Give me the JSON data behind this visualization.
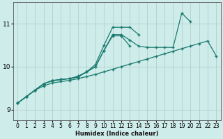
{
  "xlabel": "Humidex (Indice chaleur)",
  "ylabel": "",
  "bg_color": "#ceecea",
  "grid_color": "#b0c8c6",
  "line_color": "#1a7a6e",
  "xlim": [
    -0.5,
    23.5
  ],
  "ylim": [
    8.75,
    11.5
  ],
  "yticks": [
    9,
    10,
    11
  ],
  "xticks": [
    0,
    1,
    2,
    3,
    4,
    5,
    6,
    7,
    8,
    9,
    10,
    11,
    12,
    13,
    14,
    15,
    16,
    17,
    18,
    19,
    20,
    21,
    22,
    23
  ],
  "series": [
    {
      "x": [
        0,
        1,
        2,
        3,
        4,
        5,
        6,
        7,
        8,
        9,
        10,
        11,
        12,
        13,
        14,
        15,
        16,
        17,
        18,
        19,
        20,
        21,
        22,
        23
      ],
      "y": [
        9.15,
        9.3,
        9.45,
        9.55,
        9.62,
        9.65,
        9.68,
        9.72,
        9.77,
        9.82,
        9.88,
        9.94,
        10.0,
        10.06,
        10.12,
        10.18,
        10.24,
        10.3,
        10.36,
        10.42,
        10.48,
        10.54,
        10.6,
        10.25
      ]
    },
    {
      "x": [
        0,
        1,
        2,
        3,
        4,
        5,
        6,
        7,
        8,
        9,
        10,
        11,
        12,
        13,
        14,
        15,
        16,
        17,
        18,
        19,
        20
      ],
      "y": [
        9.15,
        9.3,
        9.45,
        9.6,
        9.68,
        9.7,
        9.72,
        9.78,
        9.88,
        10.0,
        10.38,
        10.75,
        10.75,
        10.62,
        10.48,
        10.45,
        10.45,
        10.45,
        10.45,
        11.25,
        11.05
      ]
    },
    {
      "x": [
        0,
        1,
        2,
        3,
        4,
        5,
        6,
        7,
        8,
        9,
        10,
        11,
        12,
        13,
        14
      ],
      "y": [
        9.15,
        9.3,
        9.45,
        9.6,
        9.67,
        9.7,
        9.72,
        9.76,
        9.88,
        10.05,
        10.5,
        10.92,
        10.92,
        10.92,
        10.75
      ]
    },
    {
      "x": [
        0,
        1,
        2,
        3,
        4,
        5,
        6,
        7,
        8,
        9,
        10,
        11,
        12,
        13
      ],
      "y": [
        9.15,
        9.3,
        9.45,
        9.6,
        9.67,
        9.7,
        9.72,
        9.76,
        9.88,
        10.0,
        10.38,
        10.72,
        10.72,
        10.48
      ]
    }
  ]
}
